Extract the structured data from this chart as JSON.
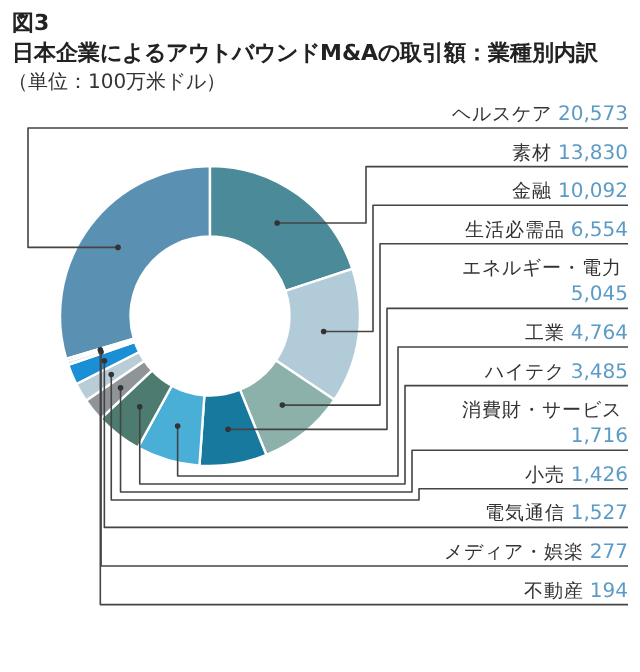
{
  "chart_data": {
    "type": "donut",
    "title": "日本企業によるアウトバウンドM&Aの取引額：業種別内訳",
    "subtitle": "（単位：100万米ドル）",
    "annotations": [
      "図3"
    ],
    "categories": [
      "ヘルスケア",
      "素材",
      "金融",
      "生活必需品",
      "エネルギー・電力",
      "工業",
      "ハイテク",
      "消費財・サービス",
      "小売",
      "電気通信",
      "メディア・娯楽",
      "不動産"
    ],
    "values": [
      20573,
      13830,
      10092,
      6554,
      5045,
      4764,
      3485,
      1716,
      1426,
      1527,
      277,
      194
    ],
    "value_labels": [
      "20,573",
      "13,830",
      "10,092",
      "6,554",
      "5,045",
      "4,764",
      "3,485",
      "1,716",
      "1,426",
      "1,527",
      "277",
      "194"
    ],
    "colors": [
      "#5a91b2",
      "#4b8a99",
      "#b2cbd9",
      "#8cb0aa",
      "#17799e",
      "#4aafd6",
      "#4e7b70",
      "#8e9498",
      "#b9cdd7",
      "#1a8fd6",
      "#dde6ec",
      "#7c9ba8"
    ]
  }
}
